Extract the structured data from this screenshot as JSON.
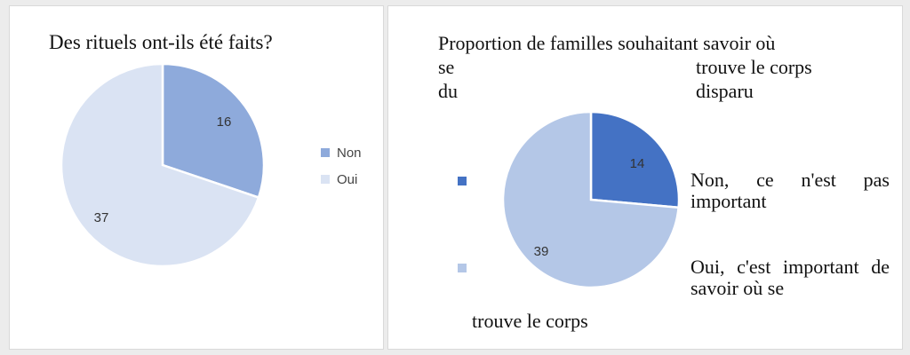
{
  "chart_data": [
    {
      "type": "pie",
      "title": "Des rituels ont-ils été faits?",
      "categories": [
        "Non",
        "Oui"
      ],
      "values": [
        16,
        37
      ],
      "colors": [
        "#8eaadb",
        "#dae3f3"
      ],
      "legend_position": "right",
      "data_labels": [
        "16",
        "37"
      ]
    },
    {
      "type": "pie",
      "title_line1": "Proportion de familles souhaitant savoir où",
      "title_line2_a": "se",
      "title_line2_b": "trouve le corps",
      "title_line3_a": "du",
      "title_line3_b": "disparu",
      "categories": [
        "Non, ce n'est pas important",
        "Oui, c'est important de savoir où se trouve le corps"
      ],
      "legend_line1": "Non, ce n'est pas important",
      "legend_line2": "Oui, c'est important de savoir où se",
      "legend_line2_tail": "trouve le corps",
      "values": [
        14,
        39
      ],
      "colors": [
        "#4472c4",
        "#b4c7e7"
      ],
      "legend_position": "left",
      "data_labels": [
        "14",
        "39"
      ]
    }
  ]
}
